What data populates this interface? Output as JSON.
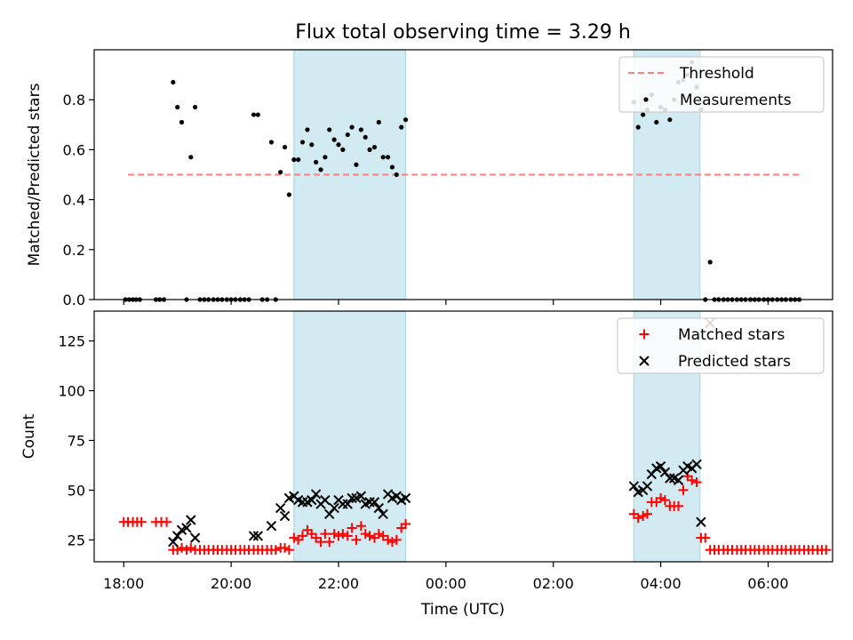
{
  "title": "Flux total observing time = 3.29 h",
  "colors": {
    "threshold": "#ff7f7f",
    "measurement": "#000000",
    "matched": "#ff0000",
    "predicted": "#000000",
    "shade": "#add8e6"
  },
  "xaxis": {
    "label": "Time (UTC)",
    "ticks": [
      18,
      20,
      22,
      24,
      26,
      28,
      30
    ],
    "tick_labels": [
      "18:00",
      "20:00",
      "22:00",
      "00:00",
      "02:00",
      "04:00",
      "06:00"
    ],
    "range": [
      17.45,
      31.2
    ]
  },
  "shaded_intervals": [
    [
      21.17,
      23.25
    ],
    [
      27.5,
      28.73
    ]
  ],
  "chart_data": [
    {
      "type": "scatter",
      "ylabel": "Matched/Predicted stars",
      "ylim": [
        0,
        1.0
      ],
      "yticks": [
        0.0,
        0.2,
        0.4,
        0.6,
        0.8
      ],
      "ytick_labels": [
        "0.0",
        "0.2",
        "0.4",
        "0.6",
        "0.8"
      ],
      "legend": {
        "placement": "top-right",
        "entries": [
          "Threshold",
          "Measurements"
        ]
      },
      "threshold": {
        "name": "Threshold",
        "x": [
          18.08,
          30.58
        ],
        "y": 0.5
      },
      "series": [
        {
          "name": "Measurements",
          "points": [
            [
              18.03,
              0
            ],
            [
              18.1,
              0
            ],
            [
              18.17,
              0
            ],
            [
              18.23,
              0
            ],
            [
              18.3,
              0
            ],
            [
              18.6,
              0
            ],
            [
              18.67,
              0
            ],
            [
              18.75,
              0
            ],
            [
              18.92,
              0.87
            ],
            [
              19.0,
              0.77
            ],
            [
              19.08,
              0.71
            ],
            [
              19.17,
              0
            ],
            [
              19.25,
              0.57
            ],
            [
              19.33,
              0.77
            ],
            [
              19.42,
              0
            ],
            [
              19.5,
              0
            ],
            [
              19.58,
              0
            ],
            [
              19.67,
              0
            ],
            [
              19.75,
              0
            ],
            [
              19.83,
              0
            ],
            [
              19.92,
              0
            ],
            [
              20.0,
              0
            ],
            [
              20.08,
              0
            ],
            [
              20.17,
              0
            ],
            [
              20.25,
              0
            ],
            [
              20.33,
              0
            ],
            [
              20.42,
              0.74
            ],
            [
              20.5,
              0.74
            ],
            [
              20.58,
              0
            ],
            [
              20.67,
              0
            ],
            [
              20.75,
              0.63
            ],
            [
              20.83,
              0
            ],
            [
              20.92,
              0.51
            ],
            [
              21.0,
              0.61
            ],
            [
              21.08,
              0.42
            ],
            [
              21.17,
              0.56
            ],
            [
              21.25,
              0.56
            ],
            [
              21.33,
              0.63
            ],
            [
              21.42,
              0.68
            ],
            [
              21.5,
              0.62
            ],
            [
              21.58,
              0.55
            ],
            [
              21.67,
              0.52
            ],
            [
              21.75,
              0.57
            ],
            [
              21.83,
              0.68
            ],
            [
              21.92,
              0.64
            ],
            [
              22.0,
              0.62
            ],
            [
              22.08,
              0.6
            ],
            [
              22.17,
              0.66
            ],
            [
              22.25,
              0.69
            ],
            [
              22.33,
              0.54
            ],
            [
              22.42,
              0.68
            ],
            [
              22.5,
              0.65
            ],
            [
              22.58,
              0.6
            ],
            [
              22.67,
              0.61
            ],
            [
              22.75,
              0.71
            ],
            [
              22.83,
              0.57
            ],
            [
              22.92,
              0.57
            ],
            [
              23.0,
              0.53
            ],
            [
              23.08,
              0.5
            ],
            [
              23.17,
              0.69
            ],
            [
              23.25,
              0.72
            ],
            [
              27.5,
              0.79
            ],
            [
              27.58,
              0.69
            ],
            [
              27.67,
              0.74
            ],
            [
              27.75,
              0.76
            ],
            [
              27.83,
              0.82
            ],
            [
              27.92,
              0.71
            ],
            [
              28.0,
              0.77
            ],
            [
              28.08,
              0.76
            ],
            [
              28.17,
              0.72
            ],
            [
              28.25,
              0.8
            ],
            [
              28.33,
              0.87
            ],
            [
              28.42,
              0.88
            ],
            [
              28.5,
              0.9
            ],
            [
              28.58,
              0.95
            ],
            [
              28.67,
              0.85
            ],
            [
              28.75,
              0.76
            ],
            [
              28.83,
              0
            ],
            [
              28.92,
              0.15
            ],
            [
              29.0,
              0
            ],
            [
              29.08,
              0
            ],
            [
              29.17,
              0
            ],
            [
              29.25,
              0
            ],
            [
              29.33,
              0
            ],
            [
              29.42,
              0
            ],
            [
              29.5,
              0
            ],
            [
              29.58,
              0
            ],
            [
              29.67,
              0
            ],
            [
              29.75,
              0
            ],
            [
              29.83,
              0
            ],
            [
              29.92,
              0
            ],
            [
              30.0,
              0
            ],
            [
              30.08,
              0
            ],
            [
              30.17,
              0
            ],
            [
              30.25,
              0
            ],
            [
              30.33,
              0
            ],
            [
              30.42,
              0
            ],
            [
              30.5,
              0
            ],
            [
              30.58,
              0
            ]
          ]
        }
      ]
    },
    {
      "type": "scatter",
      "ylabel": "Count",
      "ylim": [
        14,
        140
      ],
      "yticks": [
        25,
        50,
        75,
        100,
        125
      ],
      "ytick_labels": [
        "25",
        "50",
        "75",
        "100",
        "125"
      ],
      "legend": {
        "placement": "top-right",
        "entries": [
          "Matched stars",
          "Predicted stars"
        ]
      },
      "series": [
        {
          "name": "Matched stars",
          "marker": "plus",
          "points": [
            [
              18.0,
              34
            ],
            [
              18.08,
              34
            ],
            [
              18.17,
              34
            ],
            [
              18.25,
              34
            ],
            [
              18.33,
              34
            ],
            [
              18.6,
              34
            ],
            [
              18.7,
              34
            ],
            [
              18.8,
              34
            ],
            [
              18.92,
              20
            ],
            [
              19.0,
              20
            ],
            [
              19.08,
              21
            ],
            [
              19.17,
              20
            ],
            [
              19.25,
              21
            ],
            [
              19.33,
              20
            ],
            [
              19.42,
              20
            ],
            [
              19.5,
              20
            ],
            [
              19.58,
              20
            ],
            [
              19.67,
              20
            ],
            [
              19.75,
              20
            ],
            [
              19.83,
              20
            ],
            [
              19.92,
              20
            ],
            [
              20.0,
              20
            ],
            [
              20.08,
              20
            ],
            [
              20.17,
              20
            ],
            [
              20.25,
              20
            ],
            [
              20.33,
              20
            ],
            [
              20.42,
              20
            ],
            [
              20.5,
              20
            ],
            [
              20.58,
              20
            ],
            [
              20.67,
              20
            ],
            [
              20.75,
              20
            ],
            [
              20.83,
              20
            ],
            [
              20.92,
              21
            ],
            [
              21.0,
              21
            ],
            [
              21.08,
              20
            ],
            [
              21.17,
              26
            ],
            [
              21.25,
              25
            ],
            [
              21.33,
              27
            ],
            [
              21.42,
              30
            ],
            [
              21.5,
              28
            ],
            [
              21.58,
              26
            ],
            [
              21.67,
              24
            ],
            [
              21.75,
              28
            ],
            [
              21.83,
              24
            ],
            [
              21.92,
              28
            ],
            [
              22.0,
              27
            ],
            [
              22.08,
              28
            ],
            [
              22.17,
              27
            ],
            [
              22.25,
              31
            ],
            [
              22.33,
              25
            ],
            [
              22.42,
              32
            ],
            [
              22.5,
              28
            ],
            [
              22.58,
              27
            ],
            [
              22.67,
              26
            ],
            [
              22.75,
              28
            ],
            [
              22.83,
              27
            ],
            [
              22.92,
              25
            ],
            [
              23.0,
              24
            ],
            [
              23.08,
              25
            ],
            [
              23.17,
              31
            ],
            [
              23.25,
              33
            ],
            [
              27.5,
              38
            ],
            [
              27.58,
              36
            ],
            [
              27.67,
              37
            ],
            [
              27.75,
              38
            ],
            [
              27.83,
              44
            ],
            [
              27.92,
              44
            ],
            [
              28.0,
              46
            ],
            [
              28.08,
              45
            ],
            [
              28.17,
              42
            ],
            [
              28.25,
              42
            ],
            [
              28.33,
              42
            ],
            [
              28.42,
              50
            ],
            [
              28.5,
              57
            ],
            [
              28.58,
              55
            ],
            [
              28.67,
              54
            ],
            [
              28.75,
              26
            ],
            [
              28.83,
              26
            ],
            [
              28.92,
              20
            ],
            [
              29.0,
              20
            ],
            [
              29.08,
              20
            ],
            [
              29.17,
              20
            ],
            [
              29.25,
              20
            ],
            [
              29.33,
              20
            ],
            [
              29.42,
              20
            ],
            [
              29.5,
              20
            ],
            [
              29.58,
              20
            ],
            [
              29.67,
              20
            ],
            [
              29.75,
              20
            ],
            [
              29.83,
              20
            ],
            [
              29.92,
              20
            ],
            [
              30.0,
              20
            ],
            [
              30.08,
              20
            ],
            [
              30.17,
              20
            ],
            [
              30.25,
              20
            ],
            [
              30.33,
              20
            ],
            [
              30.42,
              20
            ],
            [
              30.5,
              20
            ],
            [
              30.58,
              20
            ],
            [
              30.67,
              20
            ],
            [
              30.75,
              20
            ],
            [
              30.83,
              20
            ],
            [
              30.92,
              20
            ],
            [
              31.0,
              20
            ],
            [
              31.08,
              20
            ]
          ]
        },
        {
          "name": "Predicted stars",
          "marker": "x",
          "points": [
            [
              18.92,
              24
            ],
            [
              19.0,
              27
            ],
            [
              19.08,
              30
            ],
            [
              19.17,
              31
            ],
            [
              19.25,
              35
            ],
            [
              19.33,
              26
            ],
            [
              20.42,
              27
            ],
            [
              20.5,
              27
            ],
            [
              20.75,
              32
            ],
            [
              20.92,
              41
            ],
            [
              21.0,
              37
            ],
            [
              21.08,
              46
            ],
            [
              21.17,
              47
            ],
            [
              21.25,
              45
            ],
            [
              21.33,
              44
            ],
            [
              21.42,
              44
            ],
            [
              21.5,
              45
            ],
            [
              21.58,
              48
            ],
            [
              21.67,
              43
            ],
            [
              21.75,
              45
            ],
            [
              21.83,
              38
            ],
            [
              21.92,
              41
            ],
            [
              22.0,
              45
            ],
            [
              22.08,
              43
            ],
            [
              22.17,
              43
            ],
            [
              22.25,
              46
            ],
            [
              22.33,
              46
            ],
            [
              22.42,
              47
            ],
            [
              22.5,
              43
            ],
            [
              22.58,
              44
            ],
            [
              22.67,
              44
            ],
            [
              22.75,
              41
            ],
            [
              22.83,
              38
            ],
            [
              22.92,
              48
            ],
            [
              23.0,
              46
            ],
            [
              23.08,
              47
            ],
            [
              23.17,
              45
            ],
            [
              23.25,
              46
            ],
            [
              27.5,
              52
            ],
            [
              27.58,
              49
            ],
            [
              27.67,
              50
            ],
            [
              27.75,
              52
            ],
            [
              27.83,
              58
            ],
            [
              27.92,
              61
            ],
            [
              28.0,
              62
            ],
            [
              28.08,
              59
            ],
            [
              28.17,
              56
            ],
            [
              28.25,
              56
            ],
            [
              28.33,
              55
            ],
            [
              28.42,
              60
            ],
            [
              28.5,
              62
            ],
            [
              28.58,
              61
            ],
            [
              28.67,
              63
            ],
            [
              28.75,
              34
            ],
            [
              28.92,
              134
            ]
          ]
        }
      ]
    }
  ]
}
